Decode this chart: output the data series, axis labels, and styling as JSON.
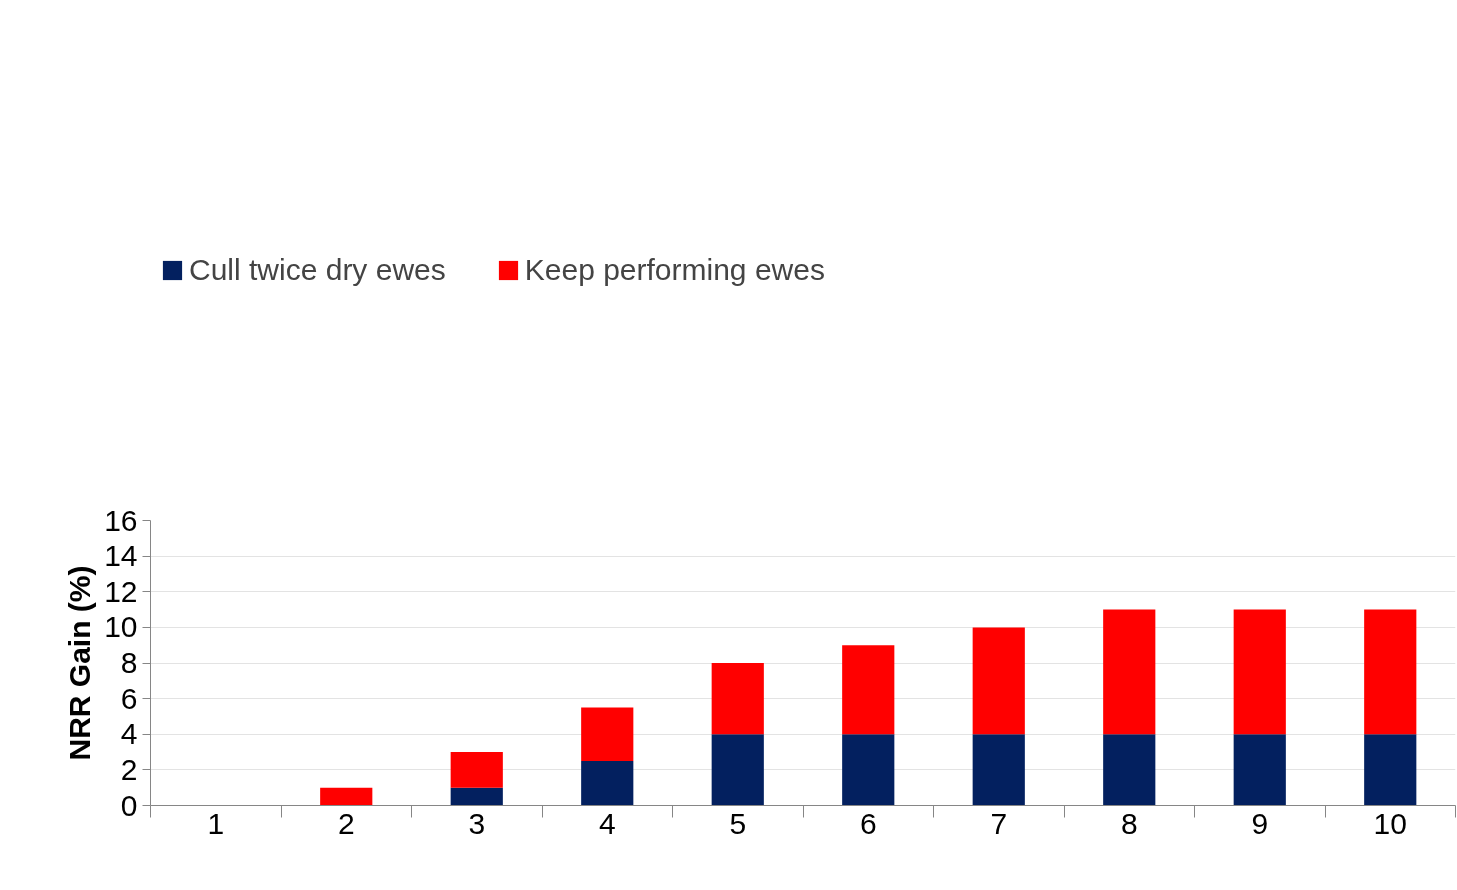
{
  "chart_data": {
    "type": "bar",
    "stacked": true,
    "ylabel": "NRR Gain (%)",
    "categories": [
      "1",
      "2",
      "3",
      "4",
      "5",
      "6",
      "7",
      "8",
      "9",
      "10"
    ],
    "series": [
      {
        "name": "Cull twice dry ewes",
        "color": "#03205f",
        "values": [
          0,
          0,
          1,
          2.5,
          4,
          4,
          4,
          4,
          4,
          4
        ]
      },
      {
        "name": "Keep performing ewes",
        "color": "#ff0000",
        "values": [
          0,
          1,
          2,
          3,
          4,
          5,
          6,
          7,
          7,
          7
        ]
      }
    ],
    "ylim": [
      0,
      16
    ],
    "yticks": [
      0,
      2,
      4,
      6,
      8,
      10,
      12,
      14,
      16
    ],
    "grid": "y",
    "legend": "top"
  }
}
